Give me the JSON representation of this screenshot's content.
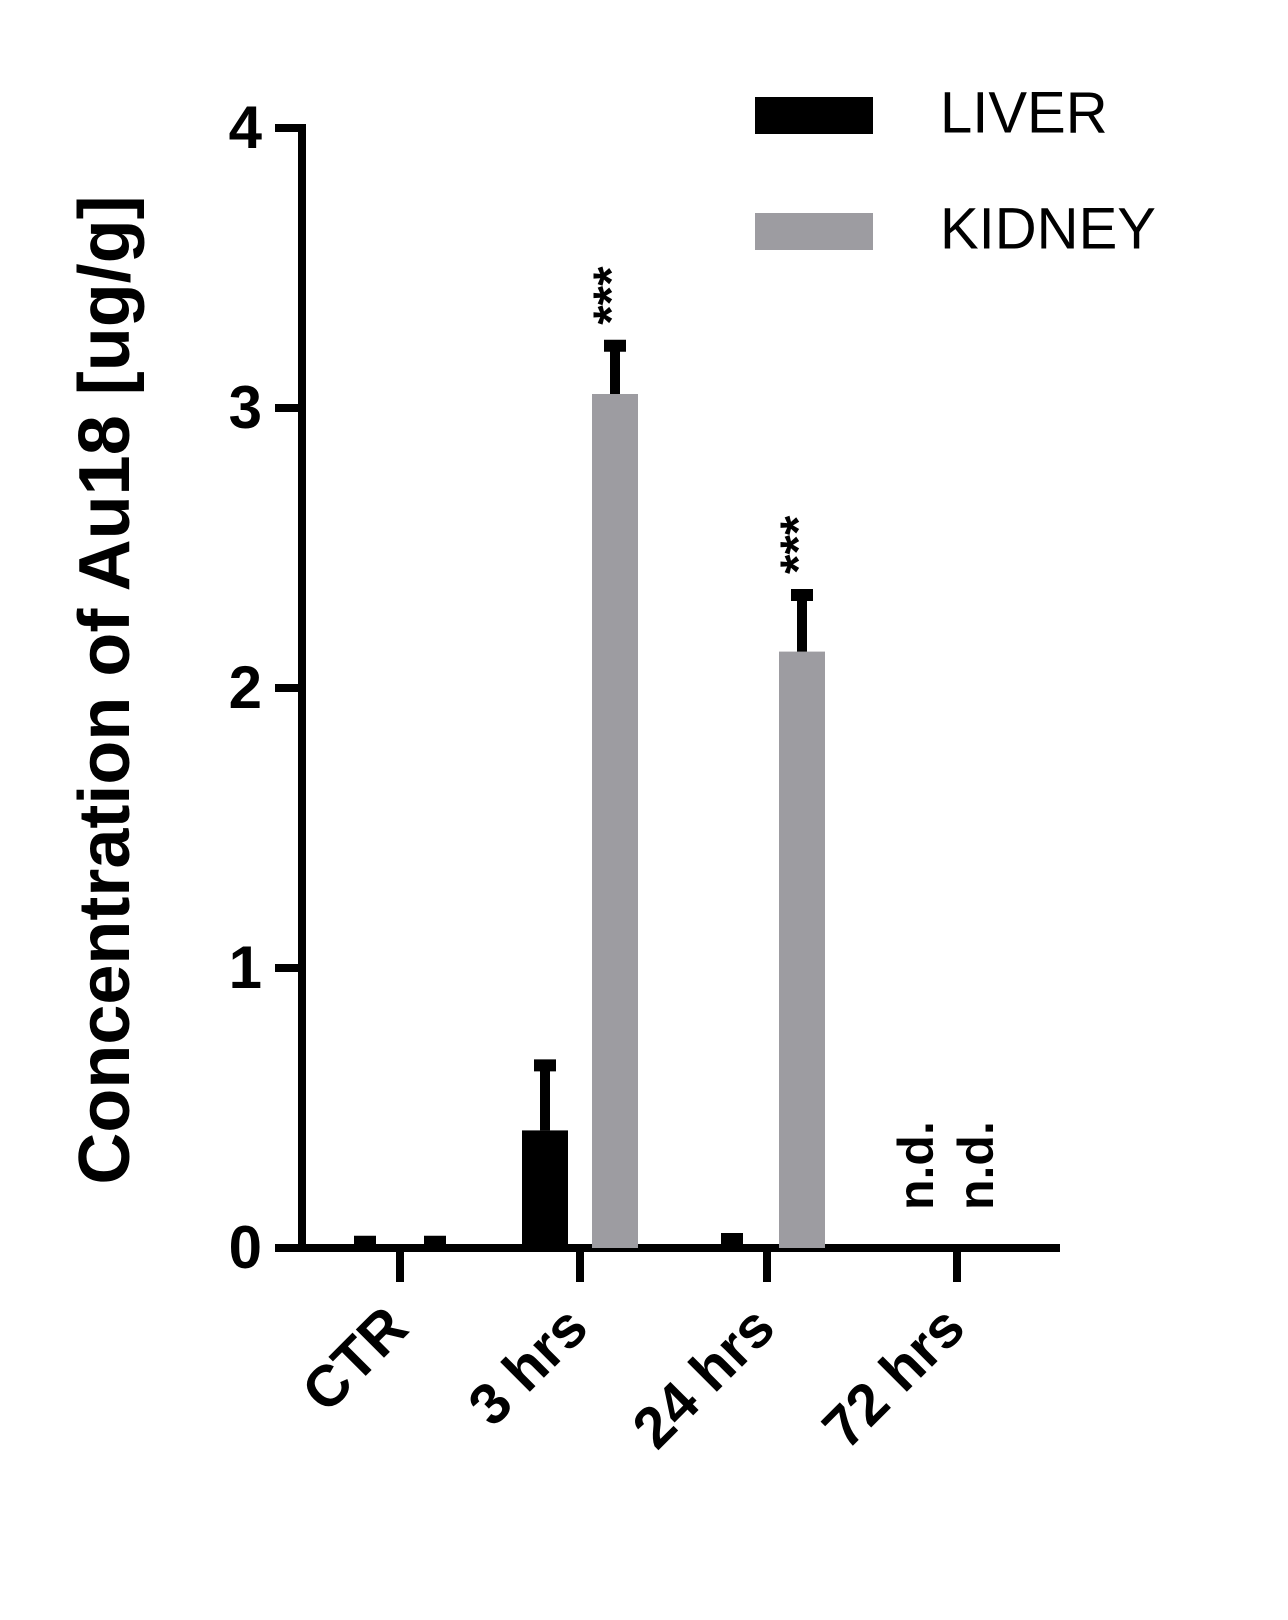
{
  "chart_data": {
    "type": "bar",
    "ylabel": "Concentration of Au18 [ug/g]",
    "categories": [
      "CTR",
      "3 hrs",
      "24 hrs",
      "72 hrs"
    ],
    "series": [
      {
        "name": "LIVER",
        "color": "#000000",
        "values": [
          0,
          0.42,
          0.01,
          null
        ],
        "errors": [
          0.04,
          0.25,
          0.04,
          null
        ],
        "annotations": [
          null,
          null,
          null,
          "n.d."
        ]
      },
      {
        "name": "KIDNEY",
        "color": "#9d9ca1",
        "values": [
          0,
          3.05,
          2.13,
          null
        ],
        "errors": [
          0.04,
          0.19,
          0.22,
          null
        ],
        "annotations": [
          null,
          "***",
          "***",
          "n.d."
        ]
      }
    ],
    "ylim": [
      0,
      4
    ],
    "yticks": [
      0,
      1,
      2,
      3,
      4
    ],
    "grid": false,
    "legend": "top-right"
  }
}
